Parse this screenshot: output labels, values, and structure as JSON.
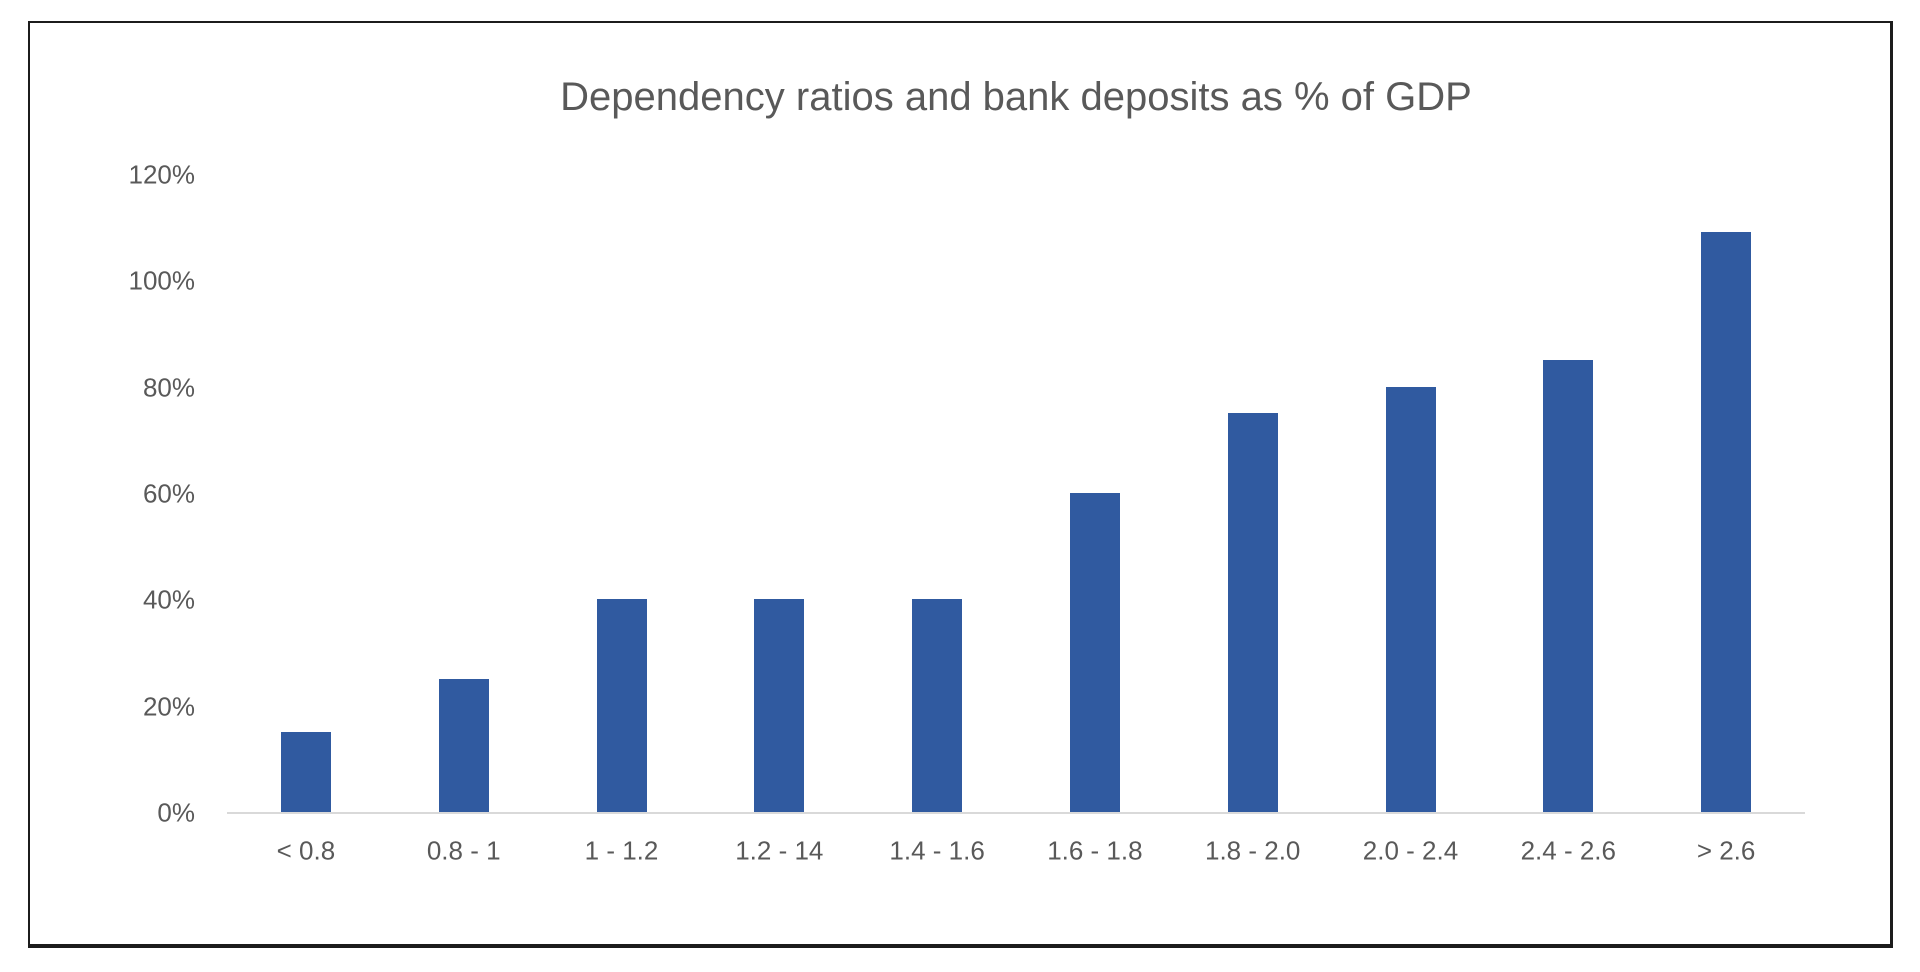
{
  "chart_data": {
    "type": "bar",
    "title": "Dependency ratios and bank deposits as % of GDP",
    "categories": [
      "< 0.8",
      "0.8 - 1",
      "1 - 1.2",
      "1.2 - 14",
      "1.4 - 1.6",
      "1.6 - 1.8",
      "1.8 - 2.0",
      "2.0 - 2.4",
      "2.4 - 2.6",
      "> 2.6"
    ],
    "values": [
      15,
      25,
      40,
      40,
      40,
      60,
      75,
      80,
      85,
      109
    ],
    "xlabel": "",
    "ylabel": "",
    "ylim": [
      0,
      120
    ],
    "ytick_step": 20,
    "ytick_labels": [
      "0%",
      "20%",
      "40%",
      "60%",
      "80%",
      "100%",
      "120%"
    ],
    "grid": "off",
    "legend": "none",
    "colors": {
      "bar": "#305AA0",
      "text": "#595959",
      "axis_line": "#D9D9D9",
      "frame_border": "#1c1c1c",
      "background": "#ffffff"
    }
  }
}
